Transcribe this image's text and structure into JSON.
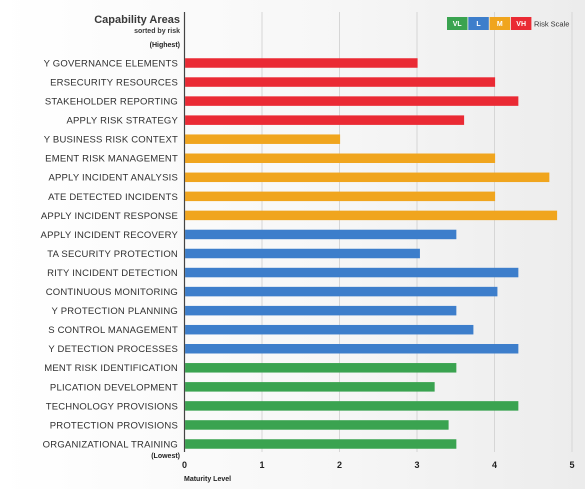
{
  "chart_data": {
    "type": "bar",
    "orientation": "horizontal",
    "title": "Capability Areas",
    "subtitle": "sorted by risk",
    "top_label": "(Highest)",
    "bottom_label": "(Lowest)",
    "xlabel": "Maturity Level",
    "xlim": [
      0,
      5
    ],
    "xticks": [
      "0",
      "1",
      "2",
      "3",
      "4",
      "5"
    ],
    "grid": true,
    "legend": {
      "placement": "top-right",
      "caption": "Risk Scale",
      "items": [
        {
          "label": "VL",
          "color": "#3aa350"
        },
        {
          "label": "L",
          "color": "#3d7ecb"
        },
        {
          "label": "M",
          "color": "#f0a51e"
        },
        {
          "label": "VH",
          "color": "#ea2a34"
        }
      ]
    },
    "categories": [
      "Y GOVERNANCE ELEMENTS",
      "ERSECURITY RESOURCES",
      "STAKEHOLDER REPORTING",
      "APPLY RISK STRATEGY",
      "Y BUSINESS RISK CONTEXT",
      "EMENT RISK MANAGEMENT",
      "APPLY INCIDENT ANALYSIS",
      "ATE DETECTED INCIDENTS",
      "APPLY INCIDENT RESPONSE",
      "APPLY INCIDENT RECOVERY",
      "TA SECURITY PROTECTION",
      "RITY INCIDENT DETECTION",
      "CONTINUOUS MONITORING",
      "Y PROTECTION PLANNING",
      "S CONTROL MANAGEMENT",
      "Y DETECTION PROCESSES",
      "MENT RISK IDENTIFICATION",
      "PLICATION DEVELOPMENT",
      "TECHNOLOGY PROVISIONS",
      "PROTECTION PROVISIONS",
      "ORGANIZATIONAL TRAINING"
    ],
    "values": [
      3.0,
      4.0,
      4.3,
      3.6,
      2.0,
      4.0,
      4.7,
      4.0,
      4.8,
      3.5,
      3.03,
      4.3,
      4.03,
      3.5,
      3.72,
      4.3,
      3.5,
      3.22,
      4.3,
      3.4,
      3.5
    ],
    "risk": [
      "VH",
      "VH",
      "VH",
      "VH",
      "M",
      "M",
      "M",
      "M",
      "M",
      "L",
      "L",
      "L",
      "L",
      "L",
      "L",
      "L",
      "VL",
      "VL",
      "VL",
      "VL",
      "VL"
    ]
  }
}
